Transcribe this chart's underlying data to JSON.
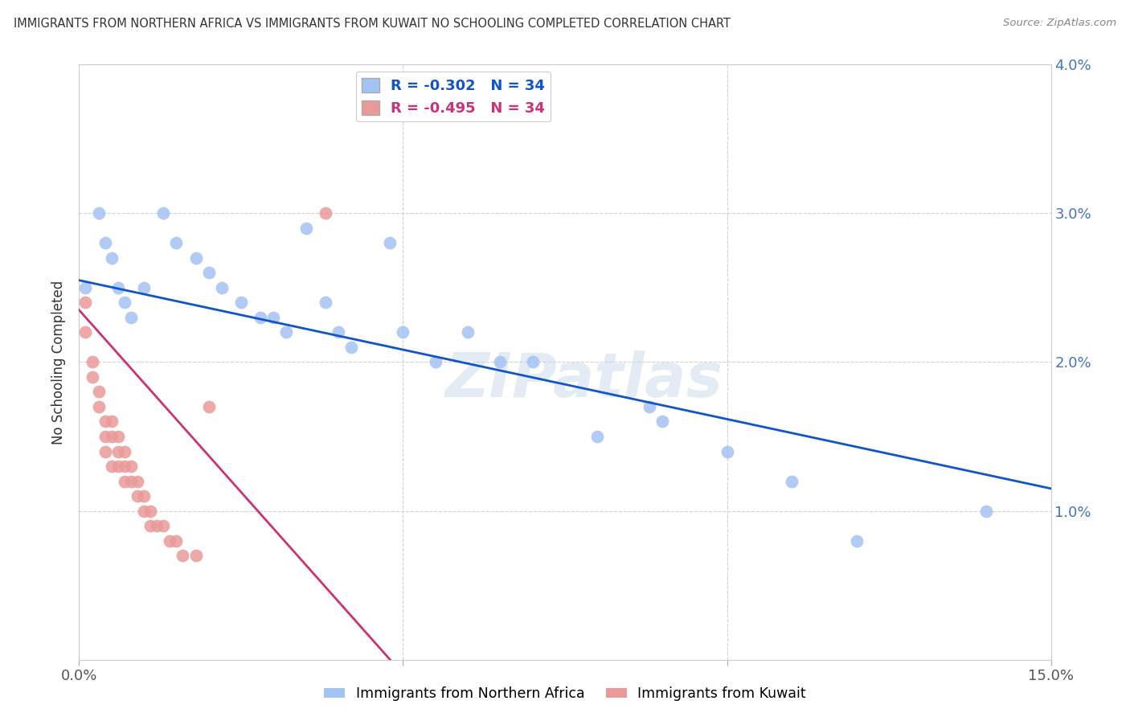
{
  "title": "IMMIGRANTS FROM NORTHERN AFRICA VS IMMIGRANTS FROM KUWAIT NO SCHOOLING COMPLETED CORRELATION CHART",
  "source": "Source: ZipAtlas.com",
  "ylabel": "No Schooling Completed",
  "legend_label_blue": "Immigrants from Northern Africa",
  "legend_label_pink": "Immigrants from Kuwait",
  "r_blue": -0.302,
  "r_pink": -0.495,
  "n_blue": 34,
  "n_pink": 34,
  "xlim": [
    0,
    0.15
  ],
  "ylim": [
    0,
    0.04
  ],
  "xticks": [
    0.0,
    0.05,
    0.1,
    0.15
  ],
  "yticks": [
    0.0,
    0.01,
    0.02,
    0.03,
    0.04
  ],
  "xtick_labels": [
    "0.0%",
    "",
    "",
    "15.0%"
  ],
  "ytick_labels_right": [
    "",
    "1.0%",
    "2.0%",
    "3.0%",
    "4.0%"
  ],
  "blue_color": "#a4c2f4",
  "pink_color": "#ea9999",
  "blue_line_color": "#1155cc",
  "pink_line_color": "#cc3377",
  "blue_x": [
    0.001,
    0.003,
    0.004,
    0.005,
    0.006,
    0.007,
    0.008,
    0.01,
    0.013,
    0.015,
    0.018,
    0.02,
    0.022,
    0.025,
    0.028,
    0.03,
    0.032,
    0.035,
    0.038,
    0.04,
    0.042,
    0.048,
    0.05,
    0.055,
    0.06,
    0.065,
    0.07,
    0.08,
    0.088,
    0.09,
    0.1,
    0.11,
    0.12,
    0.14
  ],
  "blue_y": [
    0.025,
    0.03,
    0.028,
    0.027,
    0.025,
    0.024,
    0.023,
    0.025,
    0.03,
    0.028,
    0.027,
    0.026,
    0.025,
    0.024,
    0.023,
    0.023,
    0.022,
    0.029,
    0.024,
    0.022,
    0.021,
    0.028,
    0.022,
    0.02,
    0.022,
    0.02,
    0.02,
    0.015,
    0.017,
    0.016,
    0.014,
    0.012,
    0.008,
    0.01
  ],
  "pink_x": [
    0.001,
    0.001,
    0.002,
    0.002,
    0.003,
    0.003,
    0.004,
    0.004,
    0.004,
    0.005,
    0.005,
    0.005,
    0.006,
    0.006,
    0.006,
    0.007,
    0.007,
    0.007,
    0.008,
    0.008,
    0.009,
    0.009,
    0.01,
    0.01,
    0.011,
    0.011,
    0.012,
    0.013,
    0.014,
    0.015,
    0.016,
    0.018,
    0.02,
    0.038
  ],
  "pink_y": [
    0.024,
    0.022,
    0.02,
    0.019,
    0.018,
    0.017,
    0.016,
    0.015,
    0.014,
    0.016,
    0.015,
    0.013,
    0.015,
    0.014,
    0.013,
    0.014,
    0.013,
    0.012,
    0.013,
    0.012,
    0.012,
    0.011,
    0.011,
    0.01,
    0.01,
    0.009,
    0.009,
    0.009,
    0.008,
    0.008,
    0.007,
    0.007,
    0.017,
    0.03
  ],
  "blue_trend_x": [
    0.0,
    0.15
  ],
  "blue_trend_y": [
    0.0255,
    0.0115
  ],
  "pink_trend_x": [
    0.0,
    0.048
  ],
  "pink_trend_y": [
    0.0235,
    0.0
  ],
  "watermark": "ZIPatlas",
  "background_color": "#ffffff"
}
